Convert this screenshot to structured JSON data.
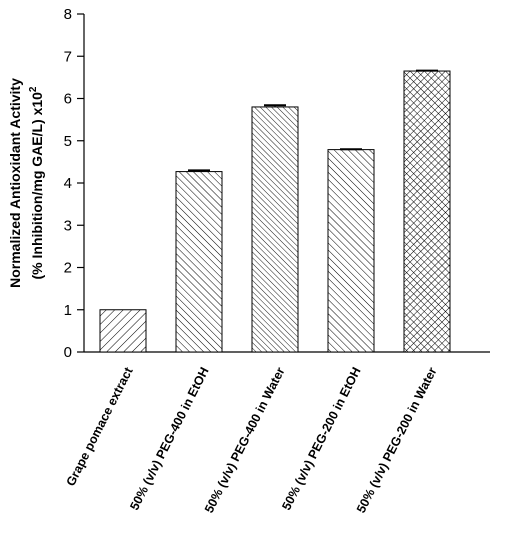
{
  "chart_data": {
    "type": "bar",
    "title": "",
    "xlabel": "",
    "ylabel_line1": "Normalized Antioxidant Activity",
    "ylabel_line2": "(% Inhibition/mg GAE/L) x10",
    "ylabel_sup": "2",
    "ylim": [
      0,
      8
    ],
    "yticks": [
      "0",
      "1",
      "2",
      "3",
      "4",
      "5",
      "6",
      "7",
      "8"
    ],
    "categories": [
      "Grape pomace extract",
      "50% (v/v) PEG-400 in EtOH",
      "50% (v/v) PEG-400 in Water",
      "50% (v/v) PEG-200 in EtOH",
      "50% (v/v) PEG-200 in Water"
    ],
    "values": [
      1.0,
      4.27,
      5.8,
      4.79,
      6.65
    ],
    "errors": [
      0.0,
      0.03,
      0.04,
      0.01,
      0.01
    ],
    "patterns": [
      "diag-wide",
      "diag-back",
      "diag-back-dense",
      "diag-back",
      "crosshatch"
    ],
    "grid": false,
    "legend": "none"
  }
}
